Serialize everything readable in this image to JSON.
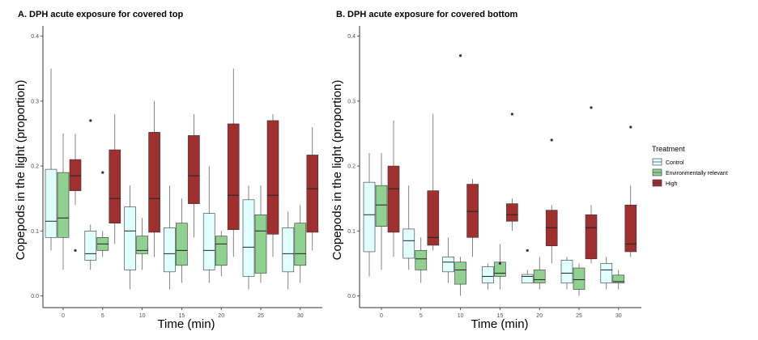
{
  "chart_data": [
    {
      "type": "boxplot",
      "title": "A. DPH acute exposure for covered top",
      "xlabel": "Time (min)",
      "ylabel": "Copepods in the light (proportion)",
      "categories": [
        "0",
        "5",
        "10",
        "15",
        "20",
        "25",
        "30"
      ],
      "ylim": [
        0,
        0.42
      ],
      "yticks": [
        "0.0",
        "0.1",
        "0.2",
        "0.3",
        "0.4"
      ],
      "grid": false,
      "series": [
        {
          "name": "Control",
          "color": "#e0ffff",
          "boxes": [
            {
              "min": 0.07,
              "q1": 0.09,
              "median": 0.115,
              "q3": 0.195,
              "max": 0.35,
              "outliers": []
            },
            {
              "min": 0.04,
              "q1": 0.055,
              "median": 0.065,
              "q3": 0.1,
              "max": 0.11,
              "outliers": [
                0.27
              ]
            },
            {
              "min": 0.01,
              "q1": 0.04,
              "median": 0.1,
              "q3": 0.137,
              "max": 0.17,
              "outliers": []
            },
            {
              "min": 0.01,
              "q1": 0.037,
              "median": 0.065,
              "q3": 0.105,
              "max": 0.17,
              "outliers": []
            },
            {
              "min": 0.02,
              "q1": 0.04,
              "median": 0.07,
              "q3": 0.127,
              "max": 0.2,
              "outliers": []
            },
            {
              "min": 0.01,
              "q1": 0.03,
              "median": 0.075,
              "q3": 0.148,
              "max": 0.17,
              "outliers": []
            },
            {
              "min": 0.01,
              "q1": 0.037,
              "median": 0.065,
              "q3": 0.105,
              "max": 0.13,
              "outliers": []
            }
          ]
        },
        {
          "name": "Environmentally relevant",
          "color": "#90d090",
          "boxes": [
            {
              "min": 0.04,
              "q1": 0.09,
              "median": 0.12,
              "q3": 0.19,
              "max": 0.25,
              "outliers": []
            },
            {
              "min": 0.06,
              "q1": 0.07,
              "median": 0.08,
              "q3": 0.09,
              "max": 0.1,
              "outliers": [
                0.19
              ]
            },
            {
              "min": 0.04,
              "q1": 0.065,
              "median": 0.07,
              "q3": 0.092,
              "max": 0.12,
              "outliers": []
            },
            {
              "min": 0.02,
              "q1": 0.047,
              "median": 0.07,
              "q3": 0.112,
              "max": 0.15,
              "outliers": []
            },
            {
              "min": 0.03,
              "q1": 0.047,
              "median": 0.08,
              "q3": 0.092,
              "max": 0.1,
              "outliers": []
            },
            {
              "min": 0.02,
              "q1": 0.035,
              "median": 0.1,
              "q3": 0.125,
              "max": 0.17,
              "outliers": []
            },
            {
              "min": 0.02,
              "q1": 0.047,
              "median": 0.065,
              "q3": 0.112,
              "max": 0.14,
              "outliers": []
            }
          ]
        },
        {
          "name": "High",
          "color": "#a03030",
          "boxes": [
            {
              "min": 0.14,
              "q1": 0.162,
              "median": 0.185,
              "q3": 0.21,
              "max": 0.25,
              "outliers": [
                0.07
              ]
            },
            {
              "min": 0.08,
              "q1": 0.112,
              "median": 0.15,
              "q3": 0.225,
              "max": 0.28,
              "outliers": []
            },
            {
              "min": 0.06,
              "q1": 0.098,
              "median": 0.15,
              "q3": 0.252,
              "max": 0.3,
              "outliers": []
            },
            {
              "min": 0.09,
              "q1": 0.142,
              "median": 0.185,
              "q3": 0.247,
              "max": 0.28,
              "outliers": []
            },
            {
              "min": 0.06,
              "q1": 0.102,
              "median": 0.155,
              "q3": 0.265,
              "max": 0.35,
              "outliers": []
            },
            {
              "min": 0.06,
              "q1": 0.095,
              "median": 0.155,
              "q3": 0.27,
              "max": 0.28,
              "outliers": []
            },
            {
              "min": 0.07,
              "q1": 0.098,
              "median": 0.165,
              "q3": 0.217,
              "max": 0.26,
              "outliers": []
            }
          ]
        }
      ]
    },
    {
      "type": "boxplot",
      "title": "B. DPH acute exposure for covered bottom",
      "xlabel": "Time (min)",
      "ylabel": "Copepods in the light (proportion)",
      "categories": [
        "0",
        "5",
        "10",
        "15",
        "20",
        "25",
        "30"
      ],
      "ylim": [
        0,
        0.42
      ],
      "yticks": [
        "0.0",
        "0.1",
        "0.2",
        "0.3",
        "0.4"
      ],
      "grid": false,
      "series": [
        {
          "name": "Control",
          "color": "#e0ffff",
          "boxes": [
            {
              "min": 0.03,
              "q1": 0.068,
              "median": 0.125,
              "q3": 0.175,
              "max": 0.22,
              "outliers": []
            },
            {
              "min": 0.04,
              "q1": 0.058,
              "median": 0.085,
              "q3": 0.103,
              "max": 0.17,
              "outliers": []
            },
            {
              "min": 0.02,
              "q1": 0.037,
              "median": 0.052,
              "q3": 0.06,
              "max": 0.09,
              "outliers": []
            },
            {
              "min": 0.01,
              "q1": 0.02,
              "median": 0.03,
              "q3": 0.045,
              "max": 0.05,
              "outliers": []
            },
            {
              "min": 0.02,
              "q1": 0.02,
              "median": 0.03,
              "q3": 0.033,
              "max": 0.04,
              "outliers": [
                0.07
              ]
            },
            {
              "min": 0.01,
              "q1": 0.02,
              "median": 0.035,
              "q3": 0.055,
              "max": 0.06,
              "outliers": []
            },
            {
              "min": 0.01,
              "q1": 0.02,
              "median": 0.04,
              "q3": 0.05,
              "max": 0.06,
              "outliers": []
            }
          ]
        },
        {
          "name": "Environmentally relevant",
          "color": "#90d090",
          "boxes": [
            {
              "min": 0.04,
              "q1": 0.107,
              "median": 0.14,
              "q3": 0.17,
              "max": 0.22,
              "outliers": []
            },
            {
              "min": 0.02,
              "q1": 0.04,
              "median": 0.057,
              "q3": 0.07,
              "max": 0.09,
              "outliers": []
            },
            {
              "min": 0.0,
              "q1": 0.018,
              "median": 0.04,
              "q3": 0.052,
              "max": 0.06,
              "outliers": [
                0.37
              ]
            },
            {
              "min": 0.01,
              "q1": 0.03,
              "median": 0.035,
              "q3": 0.052,
              "max": 0.08,
              "outliers": [
                0.05
              ]
            },
            {
              "min": 0.01,
              "q1": 0.02,
              "median": 0.025,
              "q3": 0.04,
              "max": 0.06,
              "outliers": []
            },
            {
              "min": 0.0,
              "q1": 0.01,
              "median": 0.025,
              "q3": 0.043,
              "max": 0.05,
              "outliers": []
            },
            {
              "min": 0.01,
              "q1": 0.02,
              "median": 0.022,
              "q3": 0.032,
              "max": 0.04,
              "outliers": []
            }
          ]
        },
        {
          "name": "High",
          "color": "#a03030",
          "boxes": [
            {
              "min": 0.06,
              "q1": 0.098,
              "median": 0.165,
              "q3": 0.2,
              "max": 0.27,
              "outliers": []
            },
            {
              "min": 0.07,
              "q1": 0.078,
              "median": 0.09,
              "q3": 0.162,
              "max": 0.28,
              "outliers": []
            },
            {
              "min": 0.06,
              "q1": 0.09,
              "median": 0.13,
              "q3": 0.172,
              "max": 0.18,
              "outliers": []
            },
            {
              "min": 0.1,
              "q1": 0.115,
              "median": 0.125,
              "q3": 0.142,
              "max": 0.15,
              "outliers": [
                0.28
              ]
            },
            {
              "min": 0.05,
              "q1": 0.077,
              "median": 0.105,
              "q3": 0.132,
              "max": 0.14,
              "outliers": [
                0.24
              ]
            },
            {
              "min": 0.05,
              "q1": 0.057,
              "median": 0.105,
              "q3": 0.125,
              "max": 0.14,
              "outliers": [
                0.29
              ]
            },
            {
              "min": 0.06,
              "q1": 0.068,
              "median": 0.08,
              "q3": 0.14,
              "max": 0.17,
              "outliers": [
                0.26
              ]
            }
          ]
        }
      ]
    }
  ],
  "legend": {
    "title": "Treatment",
    "placement": "right",
    "items": [
      {
        "label": "Control",
        "color": "#e0ffff"
      },
      {
        "label": "Environmentally relevant",
        "color": "#90d090"
      },
      {
        "label": "High",
        "color": "#a03030"
      }
    ]
  }
}
